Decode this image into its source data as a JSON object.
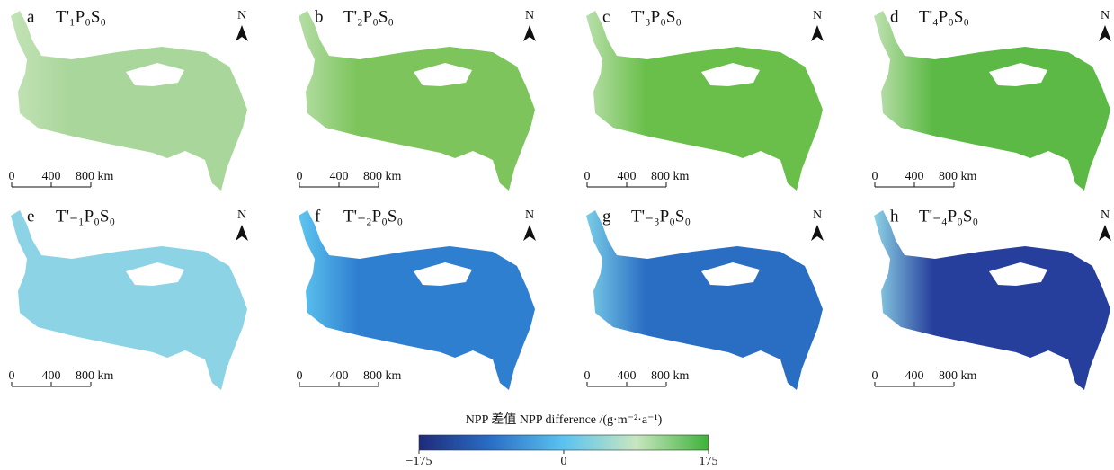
{
  "panels": [
    {
      "letter": "a",
      "title": "T'₁P₀S₀",
      "color": "#a9d69b",
      "edge": "#c3e3b6"
    },
    {
      "letter": "b",
      "title": "T'₂P₀S₀",
      "color": "#7cc45b",
      "edge": "#b6dea7"
    },
    {
      "letter": "c",
      "title": "T'₃P₀S₀",
      "color": "#6abf4b",
      "edge": "#b9dfaa"
    },
    {
      "letter": "d",
      "title": "T'₄P₀S₀",
      "color": "#5cb945",
      "edge": "#bfe1b1"
    },
    {
      "letter": "e",
      "title": "T'₋₁P₀S₀",
      "color": "#8dd3e6",
      "edge": "#8dd3e6"
    },
    {
      "letter": "f",
      "title": "T'₋₂P₀S₀",
      "color": "#2f7fd1",
      "edge": "#5ec6f0"
    },
    {
      "letter": "g",
      "title": "T'₋₃P₀S₀",
      "color": "#2a6ec4",
      "edge": "#79cde6"
    },
    {
      "letter": "h",
      "title": "T'₋₄P₀S₀",
      "color": "#263f9c",
      "edge": "#8dd3e6"
    }
  ],
  "north": "N",
  "scale": [
    "0",
    "400",
    "800 km"
  ],
  "colorbar": {
    "title": "NPP 差值   NPP difference /(g·m⁻²·a⁻¹)",
    "lim": [
      -175,
      175
    ],
    "ticks": [
      {
        "value": -175,
        "label": "−175"
      },
      0,
      175
    ],
    "colors": [
      "#1f2a7a",
      "#2a6fc6",
      "#5bc3f0",
      "#c8e6c0",
      "#3fb13a"
    ]
  }
}
